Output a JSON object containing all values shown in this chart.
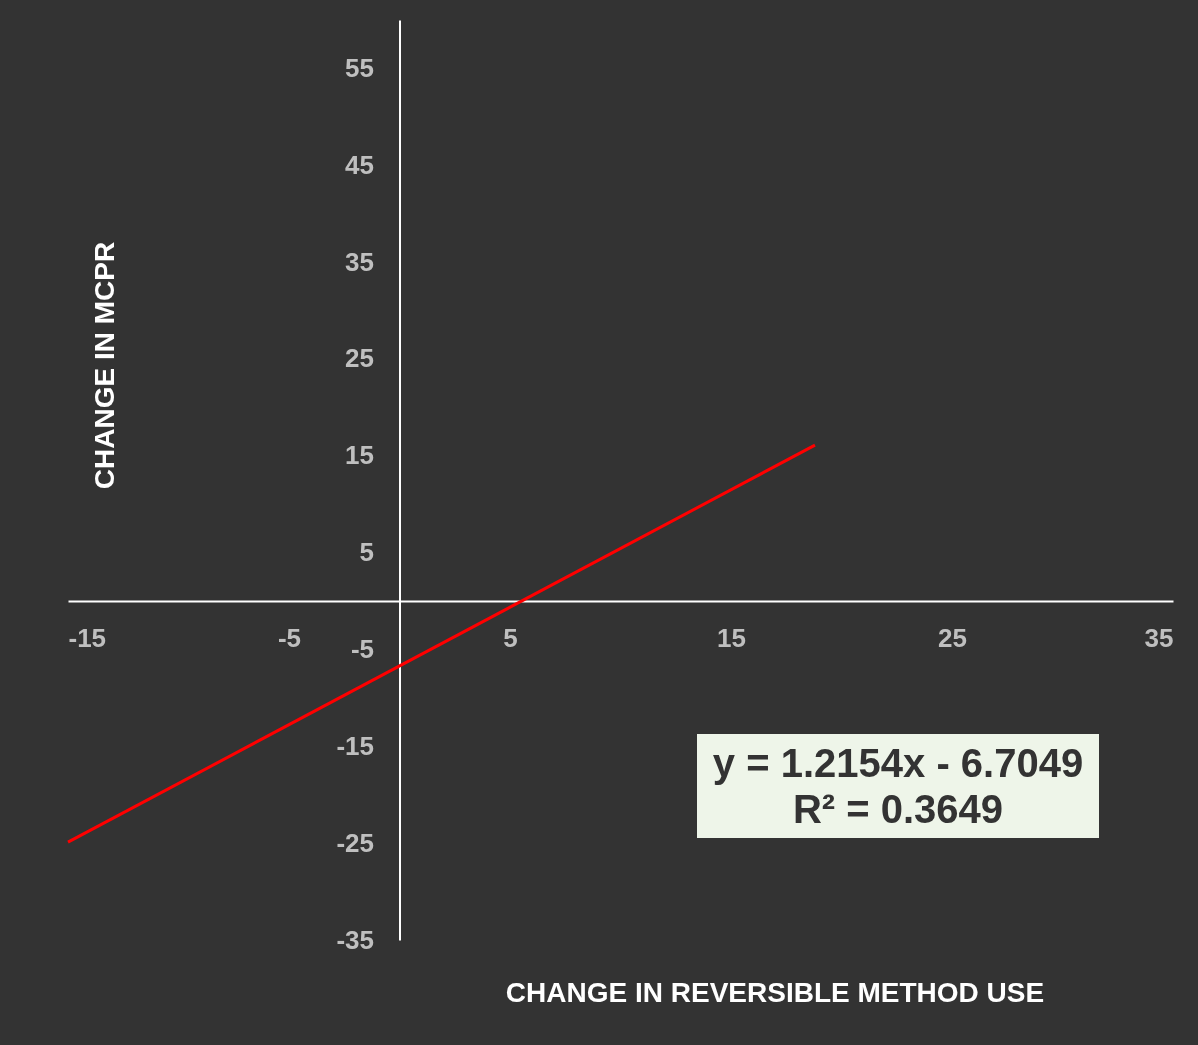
{
  "chart_data": {
    "type": "line",
    "xlabel": "CHANGE IN REVERSIBLE METHOD USE",
    "ylabel": "CHANGE IN MCPR",
    "annotations": [
      "y = 1.2154x - 6.7049",
      "R² = 0.3649"
    ],
    "xlim": [
      -15,
      35
    ],
    "xticks": [
      -15,
      -5,
      5,
      15,
      25,
      35
    ],
    "ylim": [
      -35,
      60
    ],
    "yticks": [
      -35,
      -25,
      -15,
      -5,
      5,
      15,
      25,
      35,
      45,
      55
    ],
    "series": [
      {
        "color": "#ff0000",
        "x": [
          -15,
          18.8
        ],
        "values": [
          -24.9,
          16.1
        ]
      }
    ]
  }
}
